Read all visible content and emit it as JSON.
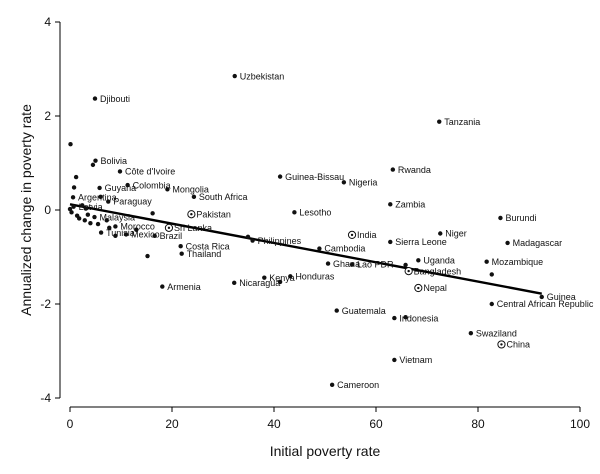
{
  "chart_data": {
    "type": "scatter",
    "title": "",
    "xlabel": "Initial poverty rate",
    "ylabel": "Annualized change in poverty rate",
    "xlim": [
      0,
      100
    ],
    "ylim": [
      -4,
      4
    ],
    "xticks": [
      "0",
      "20",
      "40",
      "60",
      "80",
      "100"
    ],
    "yticks": [
      "-4",
      "-2",
      "0",
      "2",
      "4"
    ],
    "grid": false,
    "colors": {
      "points": "#111111",
      "fit_line": "#000000"
    },
    "fit_line": {
      "x": [
        0,
        92.5
      ],
      "y": [
        0.12,
        -1.78
      ]
    },
    "labeled_points": [
      {
        "name": "Uzbekistan",
        "x": 32.3,
        "y": 2.85,
        "marker": "dot"
      },
      {
        "name": "Djibouti",
        "x": 4.9,
        "y": 2.37,
        "marker": "dot"
      },
      {
        "name": "Tanzania",
        "x": 72.4,
        "y": 1.88,
        "marker": "dot"
      },
      {
        "name": "Bolivia",
        "x": 5.0,
        "y": 1.05,
        "marker": "dot"
      },
      {
        "name": "Côte d'Ivoire",
        "x": 9.8,
        "y": 0.82,
        "marker": "dot"
      },
      {
        "name": "Rwanda",
        "x": 63.3,
        "y": 0.86,
        "marker": "dot"
      },
      {
        "name": "Guinea-Bissau",
        "x": 41.2,
        "y": 0.71,
        "marker": "dot"
      },
      {
        "name": "Nigeria",
        "x": 53.7,
        "y": 0.59,
        "marker": "dot"
      },
      {
        "name": "Colombia",
        "x": 11.3,
        "y": 0.53,
        "marker": "dot"
      },
      {
        "name": "Guyana",
        "x": 5.8,
        "y": 0.47,
        "marker": "dot"
      },
      {
        "name": "Mongolia",
        "x": 19.1,
        "y": 0.44,
        "marker": "dot"
      },
      {
        "name": "Argentina",
        "x": 0.6,
        "y": 0.27,
        "marker": "dot"
      },
      {
        "name": "South Africa",
        "x": 24.3,
        "y": 0.28,
        "marker": "dot"
      },
      {
        "name": "Paraguay",
        "x": 7.5,
        "y": 0.18,
        "marker": "dot"
      },
      {
        "name": "Zambia",
        "x": 62.8,
        "y": 0.12,
        "marker": "dot"
      },
      {
        "name": "Latvia",
        "x": 0.7,
        "y": 0.07,
        "marker": "dot"
      },
      {
        "name": "Pakistan",
        "x": 23.8,
        "y": -0.09,
        "marker": "circle"
      },
      {
        "name": "Lesotho",
        "x": 44.0,
        "y": -0.05,
        "marker": "dot"
      },
      {
        "name": "Malaysia",
        "x": 4.8,
        "y": -0.15,
        "marker": "dot"
      },
      {
        "name": "Burundi",
        "x": 84.4,
        "y": -0.17,
        "marker": "dot"
      },
      {
        "name": "Morocco",
        "x": 8.9,
        "y": -0.35,
        "marker": "dot"
      },
      {
        "name": "Sri Lanka",
        "x": 19.4,
        "y": -0.38,
        "marker": "circle"
      },
      {
        "name": "Tunisia",
        "x": 6.1,
        "y": -0.48,
        "marker": "dot"
      },
      {
        "name": "Mexico",
        "x": 11.0,
        "y": -0.52,
        "marker": "dot"
      },
      {
        "name": "Brazil",
        "x": 16.6,
        "y": -0.55,
        "marker": "dot"
      },
      {
        "name": "India",
        "x": 55.3,
        "y": -0.53,
        "marker": "circle"
      },
      {
        "name": "Niger",
        "x": 72.6,
        "y": -0.5,
        "marker": "dot"
      },
      {
        "name": "Philippines",
        "x": 35.8,
        "y": -0.65,
        "marker": "dot"
      },
      {
        "name": "Sierra Leone",
        "x": 62.8,
        "y": -0.68,
        "marker": "dot"
      },
      {
        "name": "Madagascar",
        "x": 85.8,
        "y": -0.7,
        "marker": "dot"
      },
      {
        "name": "Costa Rica",
        "x": 21.7,
        "y": -0.77,
        "marker": "dot"
      },
      {
        "name": "Cambodia",
        "x": 48.9,
        "y": -0.82,
        "marker": "dot"
      },
      {
        "name": "Thailand",
        "x": 21.9,
        "y": -0.93,
        "marker": "dot"
      },
      {
        "name": "Uganda",
        "x": 68.3,
        "y": -1.07,
        "marker": "dot"
      },
      {
        "name": "Mozambique",
        "x": 81.7,
        "y": -1.1,
        "marker": "dot"
      },
      {
        "name": "Ghana",
        "x": 50.6,
        "y": -1.14,
        "marker": "dot"
      },
      {
        "name": "Lao PDR",
        "x": 55.3,
        "y": -1.16,
        "marker": "dot"
      },
      {
        "name": "Bangladesh",
        "x": 66.4,
        "y": -1.3,
        "marker": "circle"
      },
      {
        "name": "Honduras",
        "x": 43.2,
        "y": -1.41,
        "marker": "dot"
      },
      {
        "name": "Kenya",
        "x": 38.1,
        "y": -1.44,
        "marker": "dot"
      },
      {
        "name": "Nicaragua",
        "x": 32.2,
        "y": -1.55,
        "marker": "dot"
      },
      {
        "name": "Armenia",
        "x": 18.1,
        "y": -1.63,
        "marker": "dot"
      },
      {
        "name": "Nepal",
        "x": 68.3,
        "y": -1.66,
        "marker": "circle"
      },
      {
        "name": "Guinea",
        "x": 92.5,
        "y": -1.85,
        "marker": "dot"
      },
      {
        "name": "Central African Republic",
        "x": 82.7,
        "y": -2.0,
        "marker": "dot"
      },
      {
        "name": "Guatemala",
        "x": 52.3,
        "y": -2.14,
        "marker": "dot"
      },
      {
        "name": "Indonesia",
        "x": 63.6,
        "y": -2.3,
        "marker": "dot"
      },
      {
        "name": "Swaziland",
        "x": 78.6,
        "y": -2.62,
        "marker": "dot"
      },
      {
        "name": "China",
        "x": 84.6,
        "y": -2.86,
        "marker": "circle"
      },
      {
        "name": "Vietnam",
        "x": 63.6,
        "y": -3.19,
        "marker": "dot"
      },
      {
        "name": "Cameroon",
        "x": 51.4,
        "y": -3.72,
        "marker": "dot"
      }
    ],
    "unlabeled_points": [
      {
        "x": 0.1,
        "y": 1.4
      },
      {
        "x": 0.0,
        "y": 0.02
      },
      {
        "x": 0.3,
        "y": -0.05
      },
      {
        "x": 0.8,
        "y": 0.48
      },
      {
        "x": 1.2,
        "y": 0.7
      },
      {
        "x": 1.4,
        "y": -0.12
      },
      {
        "x": 1.8,
        "y": -0.18
      },
      {
        "x": 2.4,
        "y": 0.1
      },
      {
        "x": 2.9,
        "y": -0.22
      },
      {
        "x": 3.1,
        "y": 0.03
      },
      {
        "x": 3.5,
        "y": -0.1
      },
      {
        "x": 4.0,
        "y": -0.28
      },
      {
        "x": 4.5,
        "y": 0.96
      },
      {
        "x": 5.5,
        "y": -0.3
      },
      {
        "x": 6.0,
        "y": 0.28
      },
      {
        "x": 7.2,
        "y": -0.22
      },
      {
        "x": 7.7,
        "y": -0.38
      },
      {
        "x": 8.9,
        "y": -0.55
      },
      {
        "x": 13.0,
        "y": -0.42
      },
      {
        "x": 15.2,
        "y": -0.98
      },
      {
        "x": 16.2,
        "y": -0.07
      },
      {
        "x": 34.9,
        "y": -0.57
      },
      {
        "x": 41.2,
        "y": -1.53
      },
      {
        "x": 65.8,
        "y": -1.17
      },
      {
        "x": 65.8,
        "y": -2.28
      },
      {
        "x": 82.7,
        "y": -1.37
      }
    ]
  }
}
